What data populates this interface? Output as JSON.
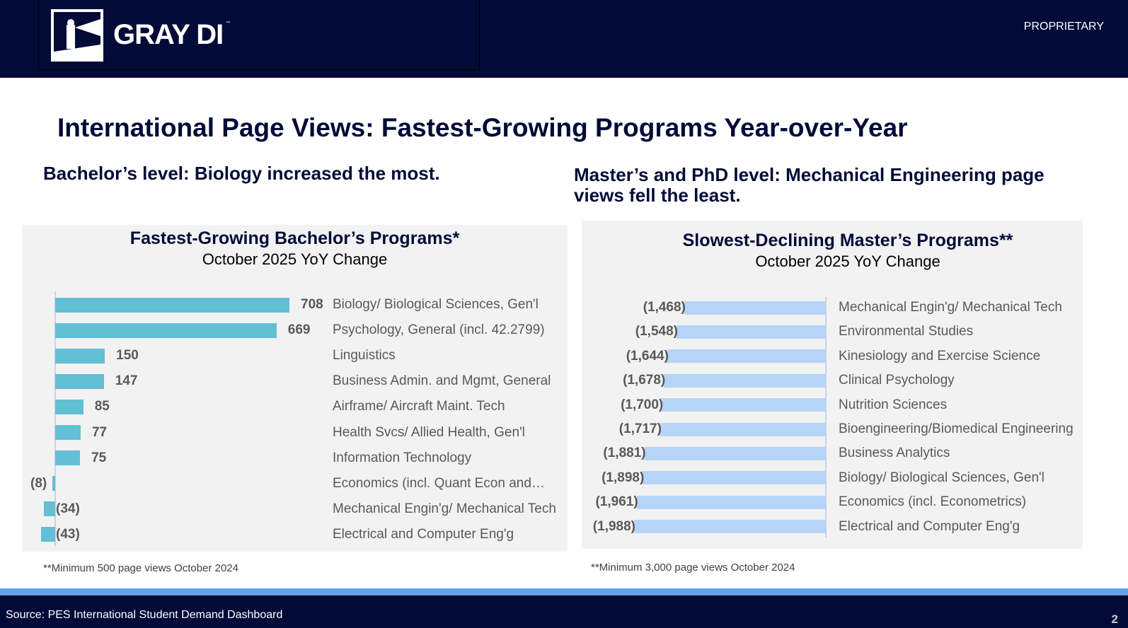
{
  "header": {
    "logo_text": "GRAY DI",
    "trademark": "™",
    "proprietary": "PROPRIETARY"
  },
  "title": "International Page Views:  Fastest-Growing Programs Year-over-Year",
  "left_subtitle": "Bachelor’s level:  Biology  increased the most.",
  "right_subtitle": "Master’s and PhD level:  Mechanical Engineering page views fell the least.",
  "left_note": "**Minimum 500 page views October 2024",
  "right_note": "**Minimum 3,000 page views October 2024",
  "footer": {
    "source": "Source:  PES International Student Demand Dashboard",
    "page": "2"
  },
  "colors": {
    "navy": "#020b37",
    "bachelor_bar": "#62bfd4",
    "master_bar": "#b6d4f8",
    "stripe": "#5fa2e6"
  },
  "chart_data": [
    {
      "type": "bar",
      "orientation": "horizontal",
      "title": "Fastest-Growing Bachelor’s Programs*",
      "subtitle": "October 2025 YoY Change",
      "categories": [
        "Biology/ Biological Sciences, Gen'l",
        "Psychology, General (incl. 42.2799)",
        "Linguistics",
        "Business Admin. and Mgmt, General",
        "Airframe/ Aircraft Maint. Tech",
        "Health Svcs/ Allied Health, Gen'l",
        "Information Technology",
        "Economics (incl. Quant Econ and…",
        "Mechanical Engin'g/ Mechanical Tech",
        "Electrical and Computer Eng'g"
      ],
      "values": [
        708,
        669,
        150,
        147,
        85,
        77,
        75,
        -8,
        -34,
        -43
      ],
      "labels": [
        "708",
        "669",
        "150",
        "147",
        "85",
        "77",
        "75",
        "(8)",
        "(34)",
        "(43)"
      ]
    },
    {
      "type": "bar",
      "orientation": "horizontal",
      "title": "Slowest-Declining Master’s Programs**",
      "subtitle": "October 2025 YoY Change",
      "categories": [
        "Mechanical Engin'g/ Mechanical Tech",
        "Environmental Studies",
        "Kinesiology and Exercise Science",
        "Clinical Psychology",
        "Nutrition Sciences",
        "Bioengineering/Biomedical Engineering",
        "Business Analytics",
        "Biology/ Biological Sciences, Gen'l",
        "Economics (incl. Econometrics)",
        "Electrical and Computer Eng'g"
      ],
      "values": [
        -1468,
        -1548,
        -1644,
        -1678,
        -1700,
        -1717,
        -1881,
        -1898,
        -1961,
        -1988
      ],
      "labels": [
        "(1,468)",
        "(1,548)",
        "(1,644)",
        "(1,678)",
        "(1,700)",
        "(1,717)",
        "(1,881)",
        "(1,898)",
        "(1,961)",
        "(1,988)"
      ]
    }
  ]
}
